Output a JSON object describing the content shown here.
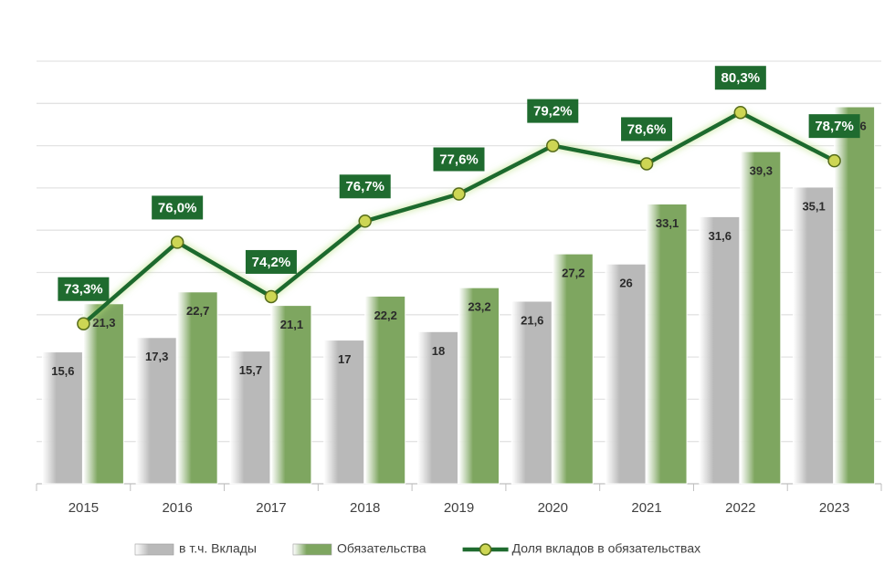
{
  "chart_data": {
    "type": "bar_line",
    "categories": [
      "2015",
      "2016",
      "2017",
      "2018",
      "2019",
      "2020",
      "2021",
      "2022",
      "2023"
    ],
    "series": [
      {
        "name": "в т.ч. Вклады",
        "color": "#b9b9b9",
        "type": "bar",
        "values": [
          15.6,
          17.3,
          15.7,
          17,
          18,
          21.6,
          26,
          31.6,
          35.1
        ],
        "value_labels": [
          "15,6",
          "17,3",
          "15,7",
          "17",
          "18",
          "21,6",
          "26",
          "31,6",
          "35,1"
        ]
      },
      {
        "name": "Обязательства",
        "color": "#7ea660",
        "type": "bar",
        "values": [
          21.3,
          22.7,
          21.1,
          22.2,
          23.2,
          27.2,
          33.1,
          39.3,
          44.6
        ],
        "value_labels": [
          "21,3",
          "22,7",
          "21,1",
          "22,2",
          "23,2",
          "27,2",
          "33,1",
          "39,3",
          "44,6"
        ]
      },
      {
        "name": "Доля вкладов в обязательствах",
        "color": "#1f6b2f",
        "type": "line",
        "axis": "y2",
        "values": [
          73.3,
          76.0,
          74.2,
          76.7,
          77.6,
          79.2,
          78.6,
          80.3,
          78.7
        ],
        "value_labels": [
          "73,3%",
          "76,0%",
          "74,2%",
          "76,7%",
          "77,6%",
          "79,2%",
          "78,6%",
          "80,3%",
          "78,7%"
        ]
      }
    ],
    "ylim": [
      0,
      50
    ],
    "yticks": [
      0,
      5,
      10,
      15,
      20,
      25,
      30,
      35,
      40,
      45,
      50
    ],
    "y2lim": [
      68,
      82
    ],
    "grid": true,
    "legend": "bottom"
  }
}
